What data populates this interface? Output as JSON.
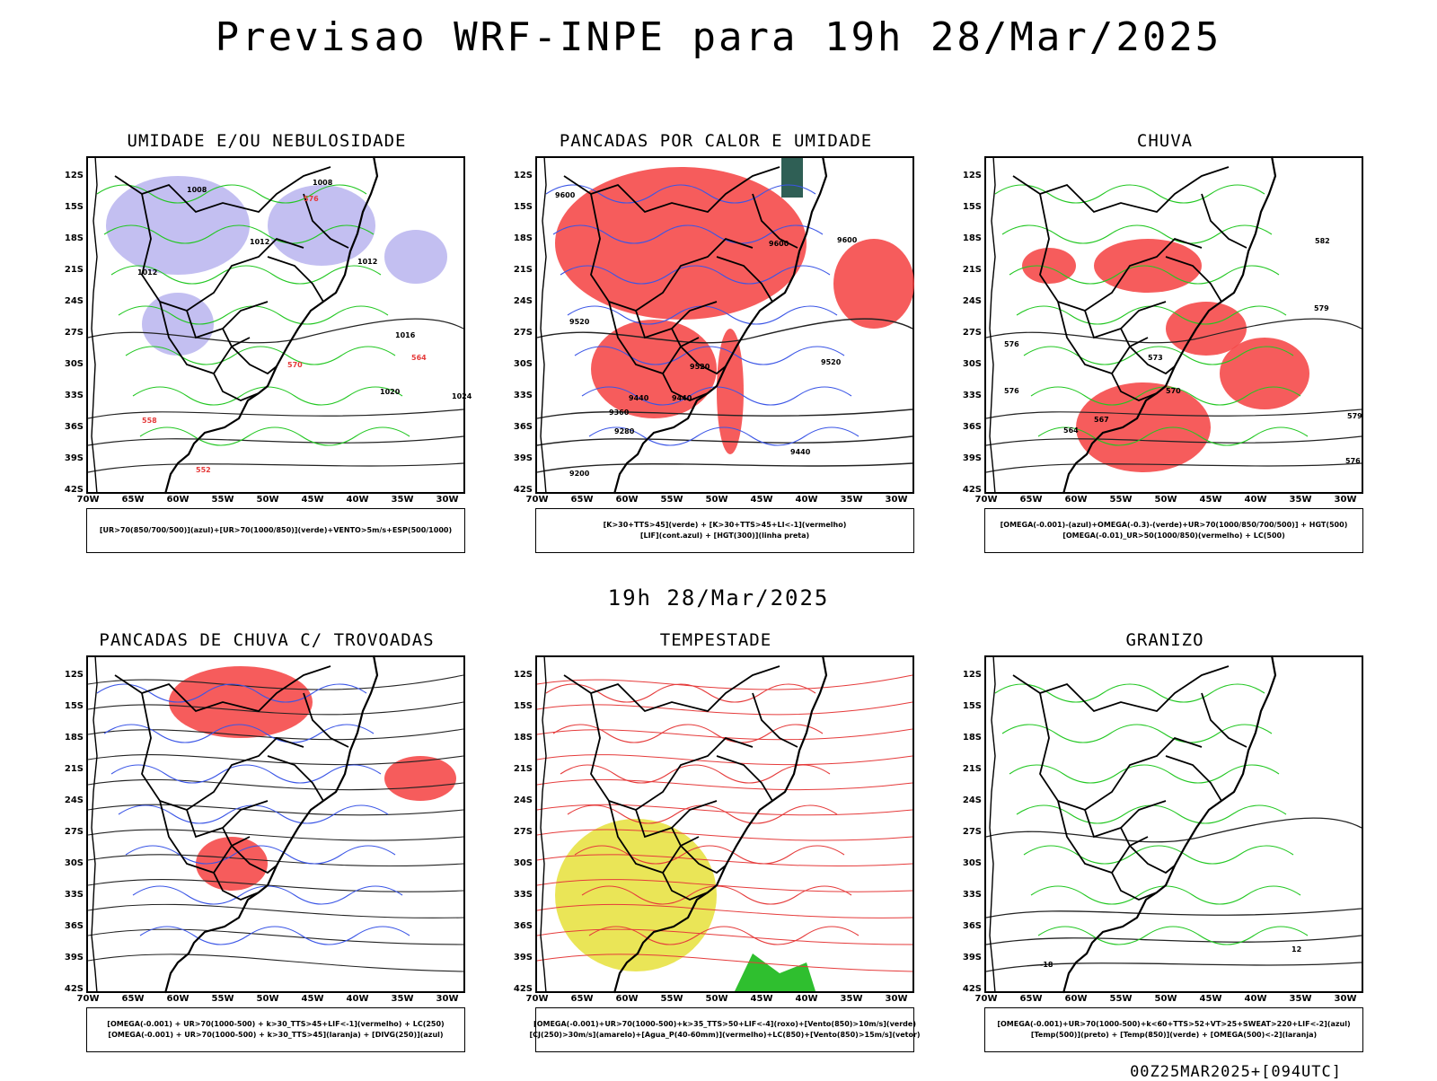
{
  "title": "Previsao WRF-INPE  para 19h 28/Mar/2025",
  "mid_title": "19h 28/Mar/2025",
  "footer": "00Z25MAR2025+[094UTC]",
  "y_ticks": [
    "12S",
    "15S",
    "18S",
    "21S",
    "24S",
    "27S",
    "30S",
    "33S",
    "36S",
    "39S",
    "42S"
  ],
  "x_ticks": [
    "70W",
    "65W",
    "60W",
    "55W",
    "50W",
    "45W",
    "40W",
    "35W",
    "30W"
  ],
  "panels": [
    {
      "title": "UMIDADE E/OU NEBULOSIDADE",
      "legend": [
        "[UR>70(850/700/500)](azul)+[UR>70(1000/850)](verde)+VENTO>5m/s+ESP(500/1000)"
      ],
      "labels": [
        "1008",
        "1008",
        "1012",
        "1012",
        "1012",
        "1016",
        "1020",
        "1024",
        "576",
        "570",
        "564",
        "558",
        "552"
      ]
    },
    {
      "title": "PANCADAS POR CALOR E UMIDADE",
      "legend": [
        "[K>30+TTS>45](verde) + [K>30+TTS>45+LI<-1](vermelho)",
        "[LIF](cont.azul) + [HGT(300)](linha preta)"
      ],
      "labels": [
        "9600",
        "9600",
        "9600",
        "9520",
        "9520",
        "9520",
        "9440",
        "9440",
        "9360",
        "9280",
        "9200",
        "9440"
      ]
    },
    {
      "title": "CHUVA",
      "legend": [
        "[OMEGA(-0.001)-(azul)+OMEGA(-0.3)-(verde)+UR>70(1000/850/700/500)] + HGT(500)",
        "[OMEGA(-0.01)_UR>50(1000/850)(vermelho) + LC(500)"
      ],
      "labels": [
        "582",
        "579",
        "576",
        "576",
        "573",
        "570",
        "567",
        "564",
        "579",
        "576"
      ]
    },
    {
      "title": "PANCADAS DE CHUVA C/ TROVOADAS",
      "legend": [
        "[OMEGA(-0.001) + UR>70(1000-500) + k>30_TTS>45+LIF<-1](vermelho) + LC(250)",
        "[OMEGA(-0.001) + UR>70(1000-500) + k>30_TTS>45](laranja) + [DIVG(250)](azul)"
      ],
      "labels": []
    },
    {
      "title": "TEMPESTADE",
      "legend": [
        "[OMEGA(-0.001)+UR>70(1000-500)+k>35_TTS>50+LIF<-4](roxo)+[Vento(850)>10m/s](verde)",
        "[CJ(250)>30m/s](amarelo)+[Agua_P(40-60mm)](vermelho)+LC(850)+[Vento(850)>15m/s](vetor)"
      ],
      "labels": []
    },
    {
      "title": "GRANIZO",
      "legend": [
        "[OMEGA(-0.001)+UR>70(1000-500)+k<60+TTS>52+VT>25+SWEAT>220+LIF<-2](azul)",
        "[Temp(500)](preto) + [Temp(850)](verde) + [OMEGA(500)<-2](laranja)"
      ],
      "labels": [
        "-18",
        "12"
      ]
    }
  ]
}
